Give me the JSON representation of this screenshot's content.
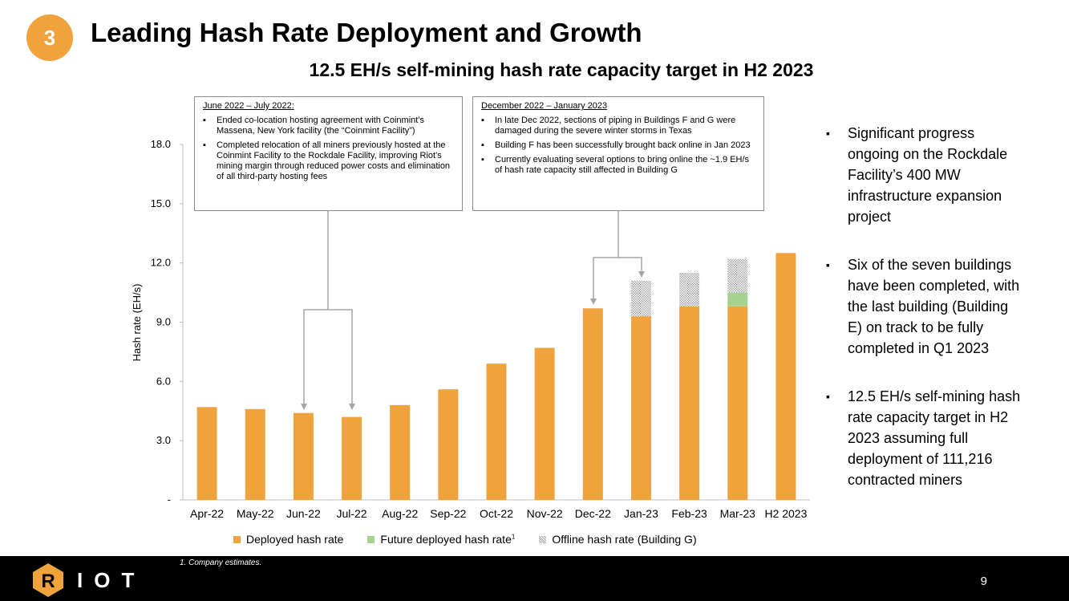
{
  "slide": {
    "badge": "3",
    "title": "Leading Hash Rate Deployment and Growth",
    "subtitle": "12.5 EH/s self-mining hash rate capacity target in H2 2023",
    "page_number": "9",
    "footnote": "1.   Company estimates.",
    "logo_mark": "R",
    "logo_text": "IOT"
  },
  "callouts": [
    {
      "heading": "June 2022 – July 2022:",
      "items": [
        "Ended co-location hosting agreement with Coinmint’s Massena, New York facility (the “Coinmint Facility”)",
        "Completed relocation of all miners previously hosted at the Coinmint Facility to the Rockdale Facility, improving Riot’s mining margin through reduced power costs and elimination of all third-party hosting fees"
      ]
    },
    {
      "heading": "December 2022 – January 2023",
      "items": [
        "In late Dec 2022, sections of piping in Buildings F and G were damaged during the severe winter storms in Texas",
        "Building F has been successfully brought back online in Jan 2023",
        "Currently evaluating several options to bring online the ~1.9 EH/s of hash rate capacity still affected in Building G"
      ]
    }
  ],
  "bullets": [
    "Significant progress ongoing on the Rockdale Facility’s 400 MW infrastructure expansion project",
    "Six of the seven buildings have been completed, with the last building (Building E) on track to be fully completed in Q1 2023",
    "12.5 EH/s self-mining hash rate capacity target in H2 2023 assuming full deployment of 111,216 contracted miners"
  ],
  "legend": {
    "deployed": "Deployed hash rate",
    "future": "Future deployed hash rate",
    "future_sup": "1",
    "offline": "Offline hash rate (Building G)"
  },
  "colors": {
    "deployed": "#f0a23c",
    "future": "#a9d18e",
    "offline": "#bfbfbf",
    "badge": "#f0a23c"
  },
  "chart_data": {
    "type": "bar",
    "stacked": true,
    "ylabel": "Hash rate (EH/s)",
    "ylim": [
      0,
      18
    ],
    "yticks": [
      0,
      3,
      6,
      9,
      12,
      15,
      18
    ],
    "ytick_labels": [
      "-",
      "3.0",
      "6.0",
      "9.0",
      "12.0",
      "15.0",
      "18.0"
    ],
    "categories": [
      "Apr-22",
      "May-22",
      "Jun-22",
      "Jul-22",
      "Aug-22",
      "Sep-22",
      "Oct-22",
      "Nov-22",
      "Dec-22",
      "Jan-23",
      "Feb-23",
      "Mar-23",
      "H2 2023"
    ],
    "series": [
      {
        "name": "Deployed hash rate",
        "key": "deployed",
        "values": [
          4.7,
          4.6,
          4.4,
          4.2,
          4.8,
          5.6,
          6.9,
          7.7,
          9.7,
          9.3,
          9.8,
          9.8,
          12.5
        ]
      },
      {
        "name": "Future deployed hash rate",
        "key": "future",
        "values": [
          0,
          0,
          0,
          0,
          0,
          0,
          0,
          0,
          0,
          0,
          0,
          0.7,
          0
        ]
      },
      {
        "name": "Offline hash rate (Building G)",
        "key": "offline",
        "values": [
          0,
          0,
          0,
          0,
          0,
          0,
          0,
          0,
          0,
          1.8,
          1.7,
          1.7,
          0
        ]
      }
    ]
  }
}
